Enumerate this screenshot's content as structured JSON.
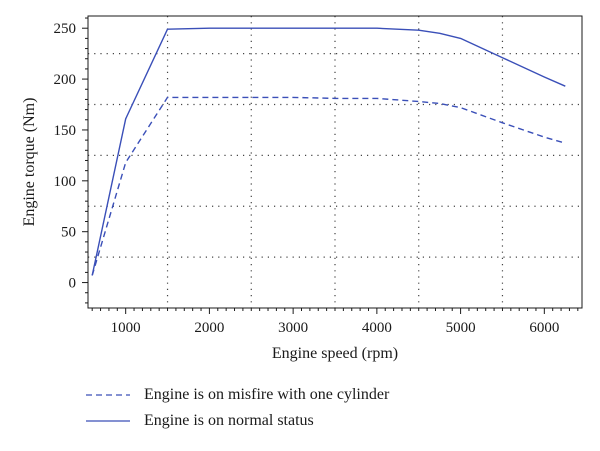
{
  "chart_data": {
    "type": "line",
    "xlabel": "Engine speed (rpm)",
    "ylabel": "Engine torque (Nm)",
    "xlim": [
      550,
      6450
    ],
    "ylim": [
      -25,
      262
    ],
    "xticks": [
      1000,
      2000,
      3000,
      4000,
      5000,
      6000
    ],
    "yticks": [
      0,
      50,
      100,
      150,
      200,
      250
    ],
    "grid_x": [
      1500,
      2500,
      3500,
      4500,
      5500
    ],
    "grid_y": [
      25,
      75,
      125,
      175,
      225
    ],
    "grid": "dotted",
    "legend_position": "below",
    "series": [
      {
        "name": "Engine is on misfire with one cylinder",
        "style": "dashed",
        "color": "#3a4fb8",
        "x": [
          600,
          1000,
          1500,
          2000,
          2500,
          3000,
          3500,
          4000,
          4500,
          4750,
          5000,
          5500,
          6000,
          6250
        ],
        "y": [
          7,
          118,
          182,
          182,
          182,
          182,
          181,
          181,
          178,
          176,
          172,
          157,
          143,
          137
        ]
      },
      {
        "name": "Engine is on normal status",
        "style": "solid",
        "color": "#3a4fb8",
        "x": [
          600,
          1000,
          1500,
          2000,
          2500,
          3000,
          3500,
          4000,
          4500,
          4750,
          5000,
          5500,
          6000,
          6250
        ],
        "y": [
          7,
          161,
          249,
          250,
          250,
          250,
          250,
          250,
          248,
          245,
          240,
          221,
          202,
          193
        ]
      }
    ]
  }
}
